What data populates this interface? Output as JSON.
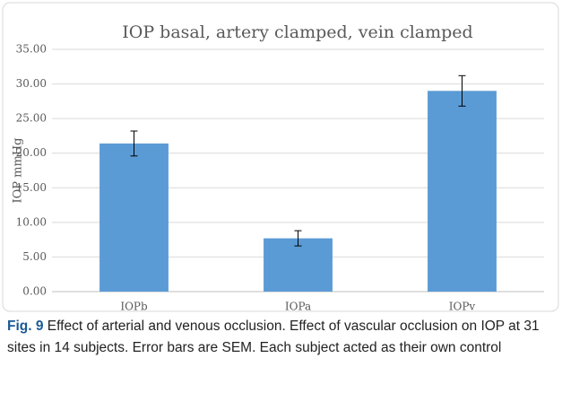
{
  "chart_data": {
    "type": "bar",
    "title": "IOP basal, artery clamped, vein clamped",
    "ylabel": "IOP mmHg",
    "categories": [
      "IOPb",
      "IOPa",
      "IOPv"
    ],
    "values": [
      21.4,
      7.7,
      29.0
    ],
    "errors": [
      1.8,
      1.1,
      2.2
    ],
    "color": "#5b9bd5",
    "ylim": [
      0,
      35
    ],
    "yticks": [
      {
        "value": 0,
        "label": "0.00"
      },
      {
        "value": 5,
        "label": "5.00"
      },
      {
        "value": 10,
        "label": "10.00"
      },
      {
        "value": 15,
        "label": "15.00"
      },
      {
        "value": 20,
        "label": "20.00"
      },
      {
        "value": 25,
        "label": "25.00"
      },
      {
        "value": 30,
        "label": "30.00"
      },
      {
        "value": 35,
        "label": "35.00"
      }
    ],
    "grid": true
  },
  "caption": {
    "label": "Fig. 9",
    "text": "Effect of arterial and venous occlusion. Effect of vascular occlusion on IOP at 31 sites in 14 subjects. Error bars are SEM. Each subject acted as their own control"
  }
}
